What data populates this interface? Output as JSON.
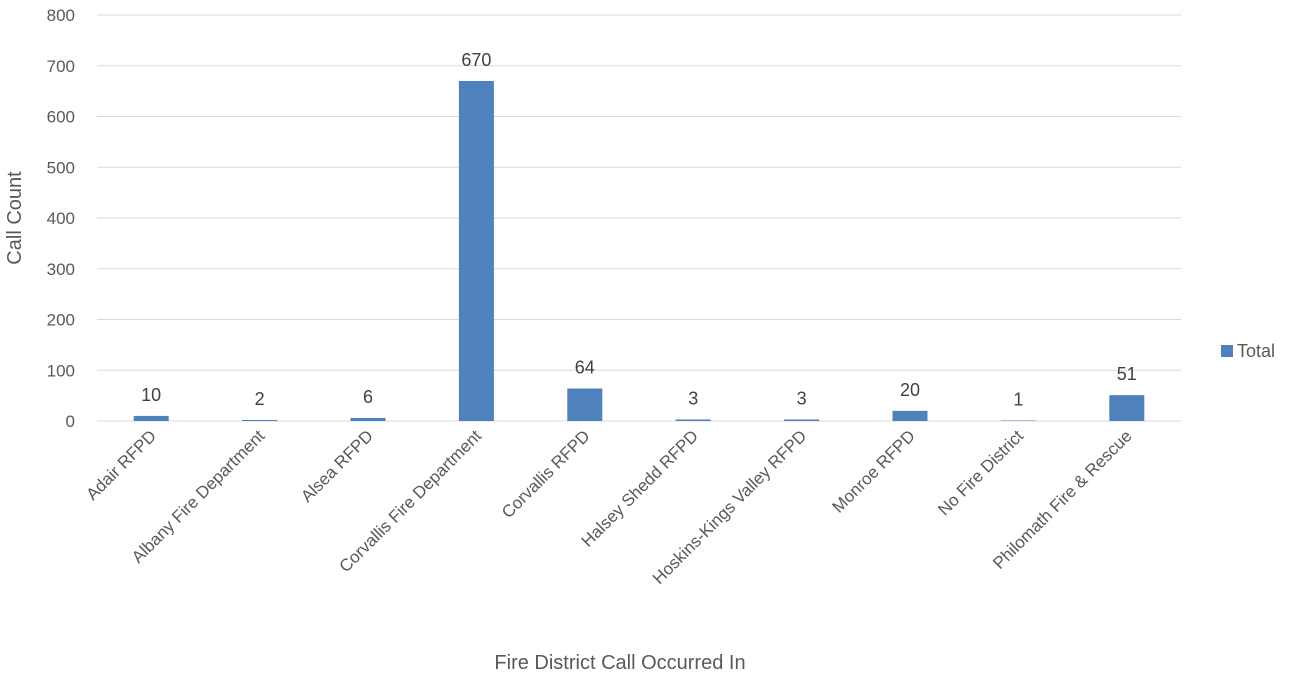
{
  "chart_data": {
    "type": "bar",
    "title": "",
    "xlabel": "Fire District Call Occurred In",
    "ylabel": "Call Count",
    "ylim": [
      0,
      800
    ],
    "yticks": [
      0,
      100,
      200,
      300,
      400,
      500,
      600,
      700,
      800
    ],
    "grid": true,
    "legend_position": "right",
    "categories": [
      "Adair RFPD",
      "Albany Fire Department",
      "Alsea RFPD",
      "Corvallis Fire Department",
      "Corvallis RFPD",
      "Halsey Shedd RFPD",
      "Hoskins-Kings Valley RFPD",
      "Monroe RFPD",
      "No Fire District",
      "Philomath Fire & Rescue"
    ],
    "series": [
      {
        "name": "Total",
        "color": "#4f81bd",
        "values": [
          10,
          2,
          6,
          670,
          64,
          3,
          3,
          20,
          1,
          51
        ]
      }
    ]
  }
}
